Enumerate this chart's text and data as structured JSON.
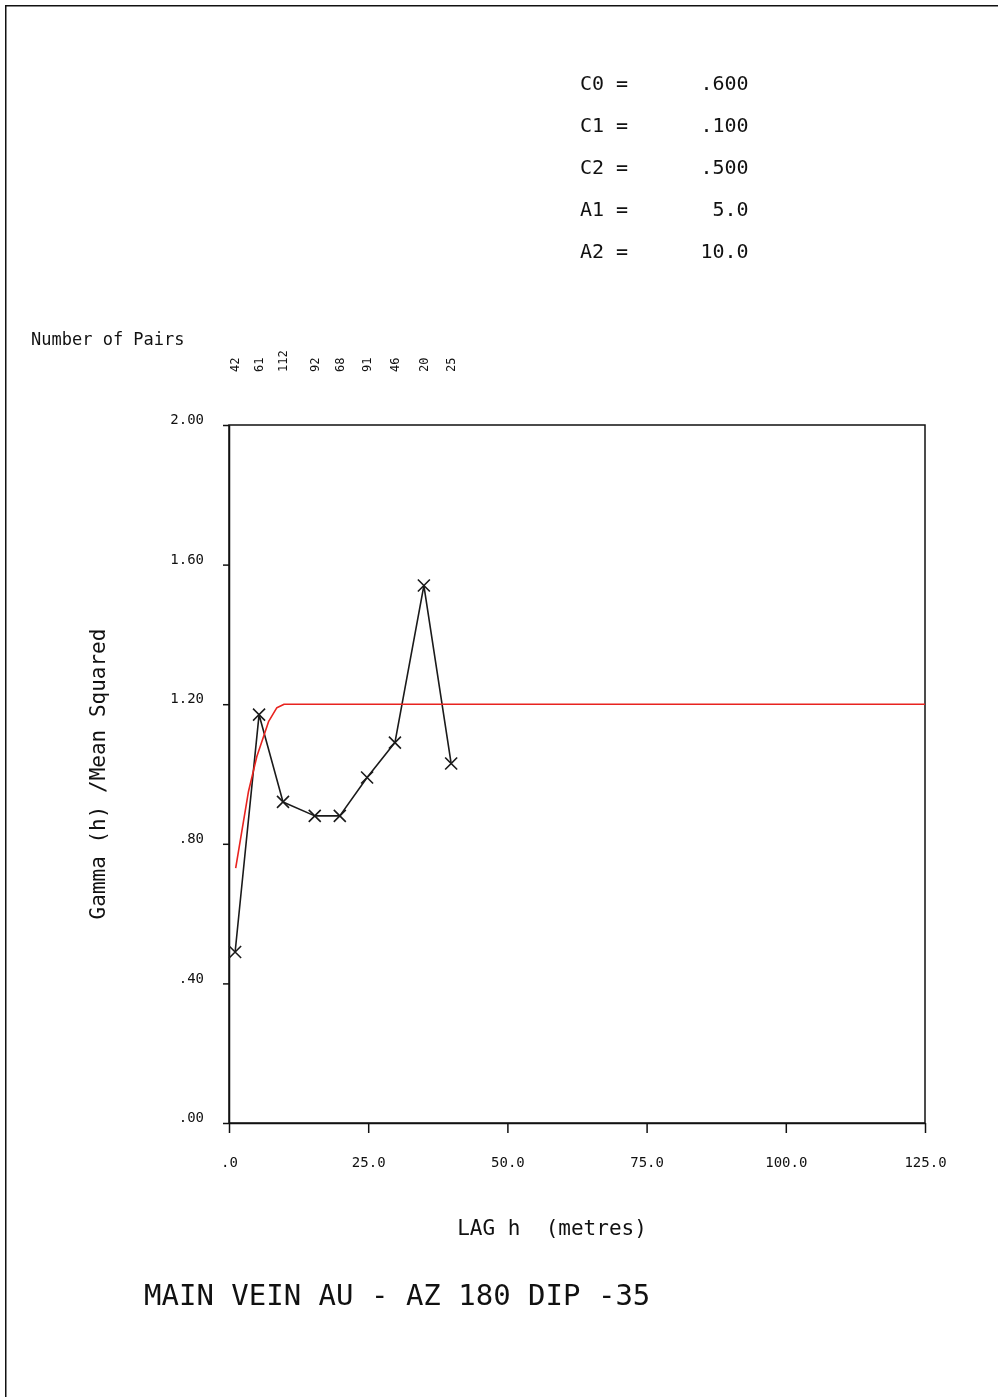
{
  "chart_data": {
    "type": "line",
    "title": "MAIN VEIN AU - AZ 180 DIP -35",
    "xlabel": "LAG h  (metres)",
    "ylabel": "Gamma (h) /Mean Squared",
    "xlim": [
      0,
      125
    ],
    "ylim": [
      0,
      2
    ],
    "xticks": [
      {
        "value": 0,
        "label": ".0"
      },
      {
        "value": 25,
        "label": "25.0"
      },
      {
        "value": 50,
        "label": "50.0"
      },
      {
        "value": 75,
        "label": "75.0"
      },
      {
        "value": 100,
        "label": "100.0"
      },
      {
        "value": 125,
        "label": "125.0"
      }
    ],
    "yticks": [
      {
        "value": 0,
        "label": ".00"
      },
      {
        "value": 0.4,
        "label": ".40"
      },
      {
        "value": 0.8,
        "label": ".80"
      },
      {
        "value": 1.2,
        "label": "1.20"
      },
      {
        "value": 1.6,
        "label": "1.60"
      },
      {
        "value": 2,
        "label": "2.00"
      }
    ],
    "grid": false,
    "series": [
      {
        "color": "#1a1a1a",
        "marker": "cross",
        "x": [
          1.1,
          5.4,
          9.7,
          15.4,
          19.9,
          24.8,
          29.8,
          35.0,
          39.9
        ],
        "values": [
          0.49,
          1.17,
          0.92,
          0.88,
          0.88,
          0.99,
          1.09,
          1.54,
          1.03
        ]
      },
      {
        "color": "#e8231f",
        "marker": "none",
        "x": [
          1.2,
          3.5,
          5.0,
          7.1,
          8.6,
          9.9,
          125
        ],
        "values": [
          0.73,
          0.95,
          1.05,
          1.15,
          1.19,
          1.2,
          1.2
        ]
      }
    ],
    "annotations": [
      "C0 =      .600",
      "C1 =      .100",
      "C2 =      .500",
      "A1 =       5.0",
      "A2 =      10.0",
      "Number of Pairs",
      "42",
      "61",
      "112",
      "92",
      "68",
      "91",
      "46",
      "20",
      "25"
    ]
  }
}
